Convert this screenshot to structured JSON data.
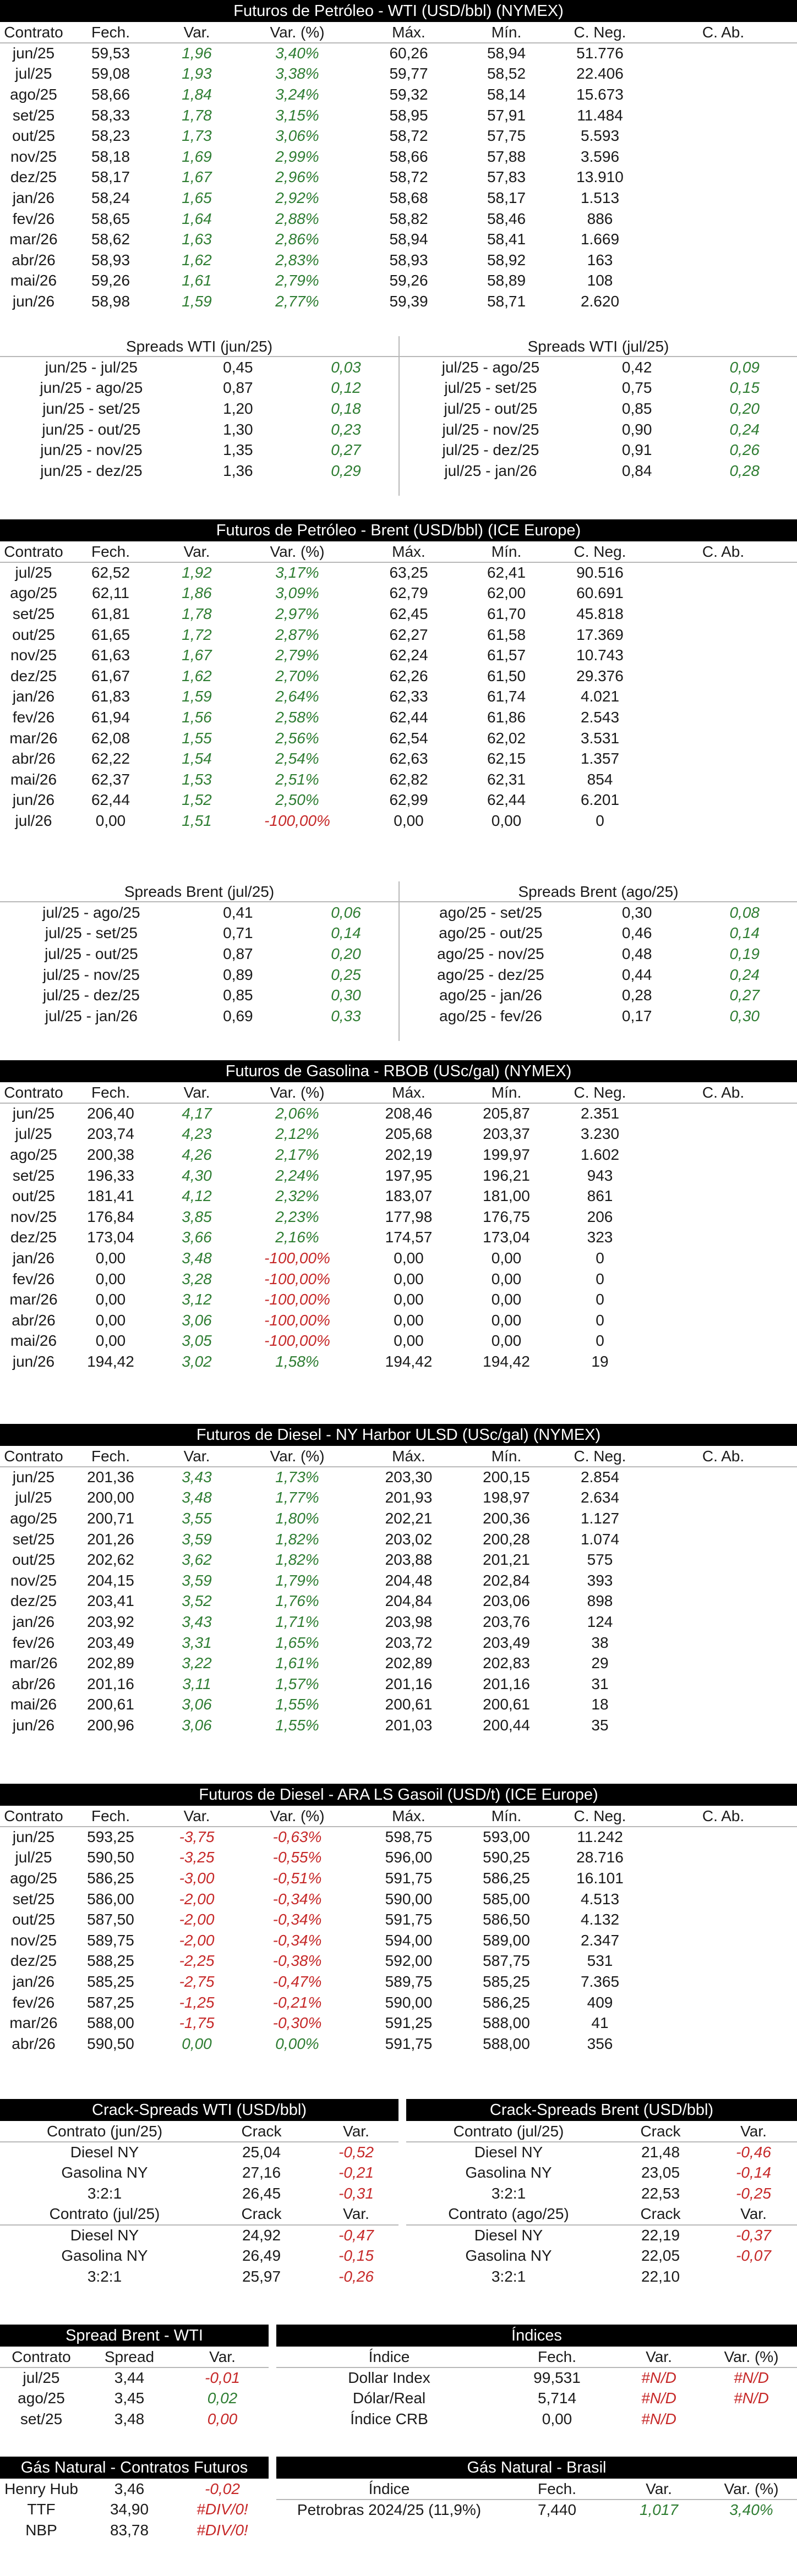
{
  "wti": {
    "title": "Futuros de Petróleo - WTI (USD/bbl) (NYMEX)",
    "headers": [
      "Contrato",
      "Fech.",
      "Var.",
      "Var. (%)",
      "Máx.",
      "Mín.",
      "C. Neg.",
      "C. Ab."
    ],
    "rows": [
      [
        "jun/25",
        "59,53",
        "1,96",
        "3,40%",
        "60,26",
        "58,94",
        "51.776",
        ""
      ],
      [
        "jul/25",
        "59,08",
        "1,93",
        "3,38%",
        "59,77",
        "58,52",
        "22.406",
        ""
      ],
      [
        "ago/25",
        "58,66",
        "1,84",
        "3,24%",
        "59,32",
        "58,14",
        "15.673",
        ""
      ],
      [
        "set/25",
        "58,33",
        "1,78",
        "3,15%",
        "58,95",
        "57,91",
        "11.484",
        ""
      ],
      [
        "out/25",
        "58,23",
        "1,73",
        "3,06%",
        "58,72",
        "57,75",
        "5.593",
        ""
      ],
      [
        "nov/25",
        "58,18",
        "1,69",
        "2,99%",
        "58,66",
        "57,88",
        "3.596",
        ""
      ],
      [
        "dez/25",
        "58,17",
        "1,67",
        "2,96%",
        "58,72",
        "57,83",
        "13.910",
        ""
      ],
      [
        "jan/26",
        "58,24",
        "1,65",
        "2,92%",
        "58,68",
        "58,17",
        "1.513",
        ""
      ],
      [
        "fev/26",
        "58,65",
        "1,64",
        "2,88%",
        "58,82",
        "58,46",
        "886",
        ""
      ],
      [
        "mar/26",
        "58,62",
        "1,63",
        "2,86%",
        "58,94",
        "58,41",
        "1.669",
        ""
      ],
      [
        "abr/26",
        "58,93",
        "1,62",
        "2,83%",
        "58,93",
        "58,92",
        "163",
        ""
      ],
      [
        "mai/26",
        "59,26",
        "1,61",
        "2,79%",
        "59,26",
        "58,89",
        "108",
        ""
      ],
      [
        "jun/26",
        "58,98",
        "1,59",
        "2,77%",
        "59,39",
        "58,71",
        "2.620",
        ""
      ]
    ],
    "spreads_left_title": "Spreads WTI (jun/25)",
    "spreads_left": [
      [
        "jun/25 - jul/25",
        "0,45",
        "0,03"
      ],
      [
        "jun/25 - ago/25",
        "0,87",
        "0,12"
      ],
      [
        "jun/25 - set/25",
        "1,20",
        "0,18"
      ],
      [
        "jun/25 - out/25",
        "1,30",
        "0,23"
      ],
      [
        "jun/25 - nov/25",
        "1,35",
        "0,27"
      ],
      [
        "jun/25 - dez/25",
        "1,36",
        "0,29"
      ]
    ],
    "spreads_right_title": "Spreads WTI (jul/25)",
    "spreads_right": [
      [
        "jul/25 - ago/25",
        "0,42",
        "0,09"
      ],
      [
        "jul/25 - set/25",
        "0,75",
        "0,15"
      ],
      [
        "jul/25 - out/25",
        "0,85",
        "0,20"
      ],
      [
        "jul/25 - nov/25",
        "0,90",
        "0,24"
      ],
      [
        "jul/25 - dez/25",
        "0,91",
        "0,26"
      ],
      [
        "jul/25 - jan/26",
        "0,84",
        "0,28"
      ]
    ]
  },
  "brent": {
    "title": "Futuros de Petróleo - Brent (USD/bbl) (ICE Europe)",
    "headers": [
      "Contrato",
      "Fech.",
      "Var.",
      "Var. (%)",
      "Máx.",
      "Mín.",
      "C. Neg.",
      "C. Ab."
    ],
    "rows": [
      [
        "jul/25",
        "62,52",
        "1,92",
        "3,17%",
        "63,25",
        "62,41",
        "90.516",
        ""
      ],
      [
        "ago/25",
        "62,11",
        "1,86",
        "3,09%",
        "62,79",
        "62,00",
        "60.691",
        ""
      ],
      [
        "set/25",
        "61,81",
        "1,78",
        "2,97%",
        "62,45",
        "61,70",
        "45.818",
        ""
      ],
      [
        "out/25",
        "61,65",
        "1,72",
        "2,87%",
        "62,27",
        "61,58",
        "17.369",
        ""
      ],
      [
        "nov/25",
        "61,63",
        "1,67",
        "2,79%",
        "62,24",
        "61,57",
        "10.743",
        ""
      ],
      [
        "dez/25",
        "61,67",
        "1,62",
        "2,70%",
        "62,26",
        "61,50",
        "29.376",
        ""
      ],
      [
        "jan/26",
        "61,83",
        "1,59",
        "2,64%",
        "62,33",
        "61,74",
        "4.021",
        ""
      ],
      [
        "fev/26",
        "61,94",
        "1,56",
        "2,58%",
        "62,44",
        "61,86",
        "2.543",
        ""
      ],
      [
        "mar/26",
        "62,08",
        "1,55",
        "2,56%",
        "62,54",
        "62,02",
        "3.531",
        ""
      ],
      [
        "abr/26",
        "62,22",
        "1,54",
        "2,54%",
        "62,63",
        "62,15",
        "1.357",
        ""
      ],
      [
        "mai/26",
        "62,37",
        "1,53",
        "2,51%",
        "62,82",
        "62,31",
        "854",
        ""
      ],
      [
        "jun/26",
        "62,44",
        "1,52",
        "2,50%",
        "62,99",
        "62,44",
        "6.201",
        ""
      ],
      [
        "jul/26",
        "0,00",
        "1,51",
        "-100,00%",
        "0,00",
        "0,00",
        "0",
        ""
      ]
    ],
    "spreads_left_title": "Spreads Brent (jul/25)",
    "spreads_left": [
      [
        "jul/25 - ago/25",
        "0,41",
        "0,06"
      ],
      [
        "jul/25 - set/25",
        "0,71",
        "0,14"
      ],
      [
        "jul/25 - out/25",
        "0,87",
        "0,20"
      ],
      [
        "jul/25 - nov/25",
        "0,89",
        "0,25"
      ],
      [
        "jul/25 - dez/25",
        "0,85",
        "0,30"
      ],
      [
        "jul/25 - jan/26",
        "0,69",
        "0,33"
      ]
    ],
    "spreads_right_title": "Spreads Brent (ago/25)",
    "spreads_right": [
      [
        "ago/25 - set/25",
        "0,30",
        "0,08"
      ],
      [
        "ago/25 - out/25",
        "0,46",
        "0,14"
      ],
      [
        "ago/25 - nov/25",
        "0,48",
        "0,19"
      ],
      [
        "ago/25 - dez/25",
        "0,44",
        "0,24"
      ],
      [
        "ago/25 - jan/26",
        "0,28",
        "0,27"
      ],
      [
        "ago/25 - fev/26",
        "0,17",
        "0,30"
      ]
    ]
  },
  "rbob": {
    "title": "Futuros de Gasolina - RBOB (USc/gal) (NYMEX)",
    "headers": [
      "Contrato",
      "Fech.",
      "Var.",
      "Var. (%)",
      "Máx.",
      "Mín.",
      "C. Neg.",
      "C. Ab."
    ],
    "rows": [
      [
        "jun/25",
        "206,40",
        "4,17",
        "2,06%",
        "208,46",
        "205,87",
        "2.351",
        ""
      ],
      [
        "jul/25",
        "203,74",
        "4,23",
        "2,12%",
        "205,68",
        "203,37",
        "3.230",
        ""
      ],
      [
        "ago/25",
        "200,38",
        "4,26",
        "2,17%",
        "202,19",
        "199,97",
        "1.602",
        ""
      ],
      [
        "set/25",
        "196,33",
        "4,30",
        "2,24%",
        "197,95",
        "196,21",
        "943",
        ""
      ],
      [
        "out/25",
        "181,41",
        "4,12",
        "2,32%",
        "183,07",
        "181,00",
        "861",
        ""
      ],
      [
        "nov/25",
        "176,84",
        "3,85",
        "2,23%",
        "177,98",
        "176,75",
        "206",
        ""
      ],
      [
        "dez/25",
        "173,04",
        "3,66",
        "2,16%",
        "174,57",
        "173,04",
        "323",
        ""
      ],
      [
        "jan/26",
        "0,00",
        "3,48",
        "-100,00%",
        "0,00",
        "0,00",
        "0",
        ""
      ],
      [
        "fev/26",
        "0,00",
        "3,28",
        "-100,00%",
        "0,00",
        "0,00",
        "0",
        ""
      ],
      [
        "mar/26",
        "0,00",
        "3,12",
        "-100,00%",
        "0,00",
        "0,00",
        "0",
        ""
      ],
      [
        "abr/26",
        "0,00",
        "3,06",
        "-100,00%",
        "0,00",
        "0,00",
        "0",
        ""
      ],
      [
        "mai/26",
        "0,00",
        "3,05",
        "-100,00%",
        "0,00",
        "0,00",
        "0",
        ""
      ],
      [
        "jun/26",
        "194,42",
        "3,02",
        "1,58%",
        "194,42",
        "194,42",
        "19",
        ""
      ]
    ]
  },
  "ulsd": {
    "title": "Futuros de Diesel - NY Harbor ULSD (USc/gal) (NYMEX)",
    "headers": [
      "Contrato",
      "Fech.",
      "Var.",
      "Var. (%)",
      "Máx.",
      "Mín.",
      "C. Neg.",
      "C. Ab."
    ],
    "rows": [
      [
        "jun/25",
        "201,36",
        "3,43",
        "1,73%",
        "203,30",
        "200,15",
        "2.854",
        ""
      ],
      [
        "jul/25",
        "200,00",
        "3,48",
        "1,77%",
        "201,93",
        "198,97",
        "2.634",
        ""
      ],
      [
        "ago/25",
        "200,71",
        "3,55",
        "1,80%",
        "202,21",
        "200,36",
        "1.127",
        ""
      ],
      [
        "set/25",
        "201,26",
        "3,59",
        "1,82%",
        "203,02",
        "200,28",
        "1.074",
        ""
      ],
      [
        "out/25",
        "202,62",
        "3,62",
        "1,82%",
        "203,88",
        "201,21",
        "575",
        ""
      ],
      [
        "nov/25",
        "204,15",
        "3,59",
        "1,79%",
        "204,48",
        "202,84",
        "393",
        ""
      ],
      [
        "dez/25",
        "203,41",
        "3,52",
        "1,76%",
        "204,84",
        "203,06",
        "898",
        ""
      ],
      [
        "jan/26",
        "203,92",
        "3,43",
        "1,71%",
        "203,98",
        "203,76",
        "124",
        ""
      ],
      [
        "fev/26",
        "203,49",
        "3,31",
        "1,65%",
        "203,72",
        "203,49",
        "38",
        ""
      ],
      [
        "mar/26",
        "202,89",
        "3,22",
        "1,61%",
        "202,89",
        "202,83",
        "29",
        ""
      ],
      [
        "abr/26",
        "201,16",
        "3,11",
        "1,57%",
        "201,16",
        "201,16",
        "31",
        ""
      ],
      [
        "mai/26",
        "200,61",
        "3,06",
        "1,55%",
        "200,61",
        "200,61",
        "18",
        ""
      ],
      [
        "jun/26",
        "200,96",
        "3,06",
        "1,55%",
        "201,03",
        "200,44",
        "35",
        ""
      ]
    ]
  },
  "gasoil": {
    "title": "Futuros de Diesel - ARA LS Gasoil (USD/t) (ICE Europe)",
    "headers": [
      "Contrato",
      "Fech.",
      "Var.",
      "Var. (%)",
      "Máx.",
      "Mín.",
      "C. Neg.",
      "C. Ab."
    ],
    "rows": [
      [
        "jun/25",
        "593,25",
        "-3,75",
        "-0,63%",
        "598,75",
        "593,00",
        "11.242",
        ""
      ],
      [
        "jul/25",
        "590,50",
        "-3,25",
        "-0,55%",
        "596,00",
        "590,25",
        "28.716",
        ""
      ],
      [
        "ago/25",
        "586,25",
        "-3,00",
        "-0,51%",
        "591,75",
        "586,25",
        "16.101",
        ""
      ],
      [
        "set/25",
        "586,00",
        "-2,00",
        "-0,34%",
        "590,00",
        "585,00",
        "4.513",
        ""
      ],
      [
        "out/25",
        "587,50",
        "-2,00",
        "-0,34%",
        "591,75",
        "586,50",
        "4.132",
        ""
      ],
      [
        "nov/25",
        "589,75",
        "-2,00",
        "-0,34%",
        "594,00",
        "589,00",
        "2.347",
        ""
      ],
      [
        "dez/25",
        "588,25",
        "-2,25",
        "-0,38%",
        "592,00",
        "587,75",
        "531",
        ""
      ],
      [
        "jan/26",
        "585,25",
        "-2,75",
        "-0,47%",
        "589,75",
        "585,25",
        "7.365",
        ""
      ],
      [
        "fev/26",
        "587,25",
        "-1,25",
        "-0,21%",
        "590,00",
        "586,25",
        "409",
        ""
      ],
      [
        "mar/26",
        "588,00",
        "-1,75",
        "-0,30%",
        "591,25",
        "588,00",
        "41",
        ""
      ],
      [
        "abr/26",
        "590,50",
        "0,00",
        "0,00%",
        "591,75",
        "588,00",
        "356",
        ""
      ]
    ]
  },
  "crack_wti": {
    "title": "Crack-Spreads WTI (USD/bbl)",
    "group1": {
      "header": [
        "Contrato (jun/25)",
        "Crack",
        "Var."
      ],
      "rows": [
        [
          "Diesel NY",
          "25,04",
          "-0,52"
        ],
        [
          "Gasolina NY",
          "27,16",
          "-0,21"
        ],
        [
          "3:2:1",
          "26,45",
          "-0,31"
        ]
      ]
    },
    "group2": {
      "header": [
        "Contrato (jul/25)",
        "Crack",
        "Var."
      ],
      "rows": [
        [
          "Diesel NY",
          "24,92",
          "-0,47"
        ],
        [
          "Gasolina NY",
          "26,49",
          "-0,15"
        ],
        [
          "3:2:1",
          "25,97",
          "-0,26"
        ]
      ]
    }
  },
  "crack_brent": {
    "title": "Crack-Spreads Brent (USD/bbl)",
    "group1": {
      "header": [
        "Contrato (jul/25)",
        "Crack",
        "Var."
      ],
      "rows": [
        [
          "Diesel NY",
          "21,48",
          "-0,46"
        ],
        [
          "Gasolina NY",
          "23,05",
          "-0,14"
        ],
        [
          "3:2:1",
          "22,53",
          "-0,25"
        ]
      ]
    },
    "group2": {
      "header": [
        "Contrato (ago/25)",
        "Crack",
        "Var."
      ],
      "rows": [
        [
          "Diesel NY",
          "22,19",
          "-0,37"
        ],
        [
          "Gasolina NY",
          "22,05",
          "-0,07"
        ],
        [
          "3:2:1",
          "22,10",
          ""
        ]
      ]
    }
  },
  "spread_bw": {
    "title": "Spread Brent - WTI",
    "header": [
      "Contrato",
      "Spread",
      "Var."
    ],
    "rows": [
      [
        "jul/25",
        "3,44",
        "-0,01"
      ],
      [
        "ago/25",
        "3,45",
        "0,02"
      ],
      [
        "set/25",
        "3,48",
        "0,00"
      ]
    ]
  },
  "indices": {
    "title": "Índices",
    "header": [
      "Índice",
      "Fech.",
      "Var.",
      "Var. (%)"
    ],
    "rows": [
      [
        "Dollar Index",
        "99,531",
        "#N/D",
        "#N/D"
      ],
      [
        "Dólar/Real",
        "5,714",
        "#N/D",
        "#N/D"
      ],
      [
        "Índice CRB",
        "0,00",
        "#N/D",
        ""
      ]
    ]
  },
  "gas_fut": {
    "title": "Gás Natural - Contratos Futuros",
    "rows": [
      [
        "Henry Hub",
        "3,46",
        "-0,02"
      ],
      [
        "TTF",
        "34,90",
        "#DIV/0!"
      ],
      [
        "NBP",
        "83,78",
        "#DIV/0!"
      ]
    ]
  },
  "gas_br": {
    "title": "Gás Natural - Brasil",
    "header": [
      "Índice",
      "Fech.",
      "Var.",
      "Var. (%)"
    ],
    "rows": [
      [
        "Petrobras 2024/25 (11,9%)",
        "7,440",
        "1,017",
        "3,40%"
      ]
    ]
  }
}
